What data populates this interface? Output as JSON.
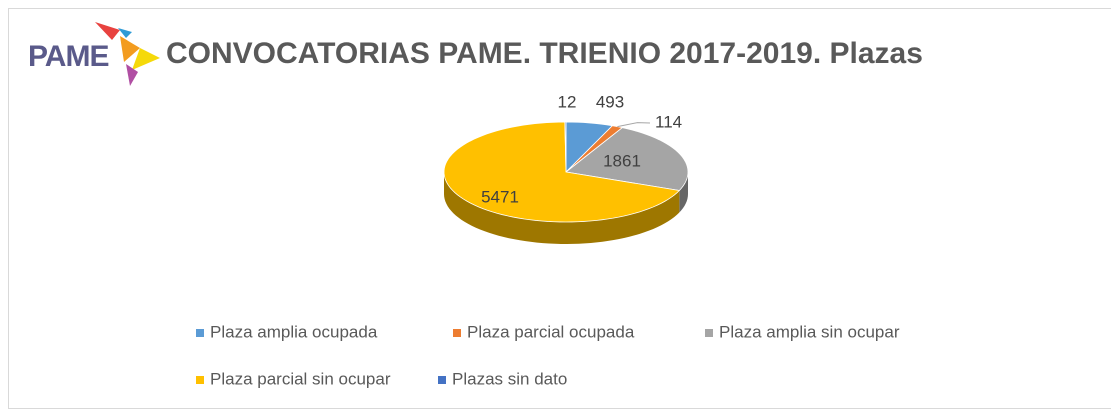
{
  "logo_text": "PAME",
  "chart_data": {
    "type": "pie3d",
    "title": "CONVOCATORIAS PAME. TRIENIO 2017-2019. Plazas",
    "series": [
      {
        "name": "Plaza amplia ocupada",
        "color": "#5b9bd5",
        "values": [
          493
        ]
      },
      {
        "name": "Plaza parcial ocupada",
        "color": "#ed7d31",
        "values": [
          114
        ]
      },
      {
        "name": "Plaza amplia sin ocupar",
        "color": "#a5a5a5",
        "values": [
          1861
        ]
      },
      {
        "name": "Plaza parcial sin ocupar",
        "color": "#ffc000",
        "values": [
          5471
        ]
      },
      {
        "name": "Plazas sin dato",
        "color": "#4472c4",
        "values": [
          12
        ]
      }
    ]
  }
}
